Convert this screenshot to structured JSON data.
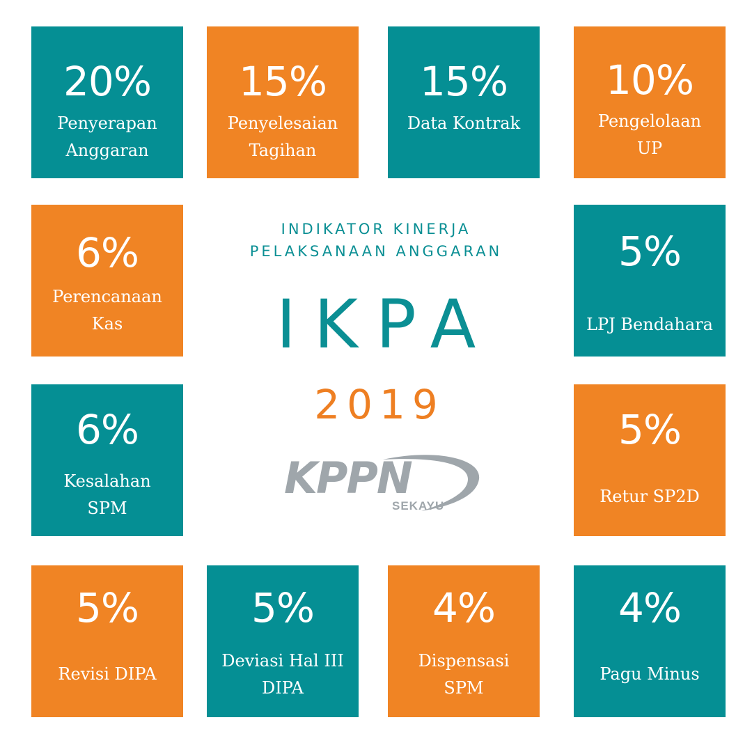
{
  "colors": {
    "teal": "#058f94",
    "orange": "#f08424",
    "logo_gray": "#9fa6ab"
  },
  "center": {
    "subtitle": "INDIKATOR KINERJA\nPELAKSANAAN ANGGARAN",
    "title": "IKPA",
    "year": "2019",
    "logo": {
      "word": "KPPN",
      "sub": "SEKAYU"
    }
  },
  "tiles": [
    {
      "percent": "20%",
      "label": "Penyerapan\nAnggaran"
    },
    {
      "percent": "15%",
      "label": "Penyelesaian\nTagihan"
    },
    {
      "percent": "15%",
      "label": "Data Kontrak"
    },
    {
      "percent": "10%",
      "label": "Pengelolaan\nUP"
    },
    {
      "percent": "6%",
      "label": "Perencanaan\nKas"
    },
    {
      "percent": "5%",
      "label": "LPJ Bendahara"
    },
    {
      "percent": "6%",
      "label": "Kesalahan\nSPM"
    },
    {
      "percent": "5%",
      "label": "Retur SP2D"
    },
    {
      "percent": "5%",
      "label": "Revisi DIPA"
    },
    {
      "percent": "5%",
      "label": "Deviasi Hal III\nDIPA"
    },
    {
      "percent": "4%",
      "label": "Dispensasi\nSPM"
    },
    {
      "percent": "4%",
      "label": "Pagu Minus"
    }
  ]
}
